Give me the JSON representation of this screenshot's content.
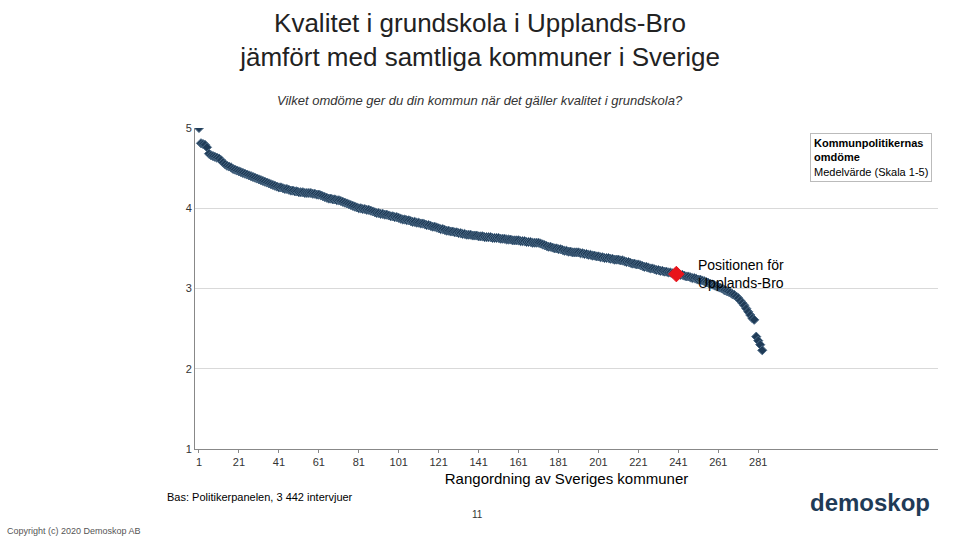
{
  "chart_data": {
    "type": "scatter",
    "title": [
      "Kvalitet i grundskola i Upplands-Bro",
      "jämfört med samtliga kommuner i Sverige"
    ],
    "subtitle": "Vilket omdöme ger du din kommun när det gäller kvalitet i grundskola?",
    "x_label": "Rangordning av Sveriges kommuner",
    "series": [
      {
        "name": "Kommunpolitikernas omdöme",
        "description": "Medelvärde (Skala 1-5)",
        "color": "#1f3b57",
        "marker": "diamond",
        "x": [
          1,
          2,
          3,
          4,
          5,
          6,
          7,
          8,
          9,
          10,
          11,
          12,
          13,
          14,
          15,
          16,
          17,
          18,
          19,
          20,
          21,
          22,
          23,
          24,
          25,
          26,
          27,
          28,
          29,
          30,
          31,
          32,
          33,
          34,
          35,
          36,
          37,
          38,
          39,
          40,
          41,
          42,
          43,
          44,
          45,
          46,
          47,
          48,
          49,
          50,
          51,
          52,
          53,
          54,
          55,
          56,
          57,
          58,
          59,
          60,
          61,
          62,
          63,
          64,
          65,
          66,
          67,
          68,
          69,
          70,
          71,
          72,
          73,
          74,
          75,
          76,
          77,
          78,
          79,
          80,
          81,
          82,
          83,
          84,
          85,
          86,
          87,
          88,
          89,
          90,
          91,
          92,
          93,
          94,
          95,
          96,
          97,
          98,
          99,
          100,
          101,
          102,
          103,
          104,
          105,
          106,
          107,
          108,
          109,
          110,
          111,
          112,
          113,
          114,
          115,
          116,
          117,
          118,
          119,
          120,
          121,
          122,
          123,
          124,
          125,
          126,
          127,
          128,
          129,
          130,
          131,
          132,
          133,
          134,
          135,
          136,
          137,
          138,
          139,
          140,
          141,
          142,
          143,
          144,
          145,
          146,
          147,
          148,
          149,
          150,
          151,
          152,
          153,
          154,
          155,
          156,
          157,
          158,
          159,
          160,
          161,
          162,
          163,
          164,
          165,
          166,
          167,
          168,
          169,
          170,
          171,
          172,
          173,
          174,
          175,
          176,
          177,
          178,
          179,
          180,
          181,
          182,
          183,
          184,
          185,
          186,
          187,
          188,
          189,
          190,
          191,
          192,
          193,
          194,
          195,
          196,
          197,
          198,
          199,
          200,
          201,
          202,
          203,
          204,
          205,
          206,
          207,
          208,
          209,
          210,
          211,
          212,
          213,
          214,
          215,
          216,
          217,
          218,
          219,
          220,
          221,
          222,
          223,
          224,
          225,
          226,
          227,
          228,
          229,
          230,
          231,
          232,
          233,
          234,
          235,
          236,
          237,
          238,
          239,
          240,
          241,
          242,
          243,
          244,
          245,
          246,
          247,
          248,
          249,
          250,
          251,
          252,
          253,
          254,
          255,
          256,
          257,
          258,
          259,
          260,
          261,
          262,
          263,
          264,
          265,
          266,
          267,
          268,
          269,
          270,
          271,
          272,
          273,
          274,
          275,
          276,
          277,
          278,
          279,
          280,
          281,
          282,
          283
        ],
        "values": [
          5.0,
          4.81,
          4.8,
          4.79,
          4.76,
          4.68,
          4.66,
          4.65,
          4.64,
          4.63,
          4.62,
          4.6,
          4.57,
          4.55,
          4.53,
          4.52,
          4.51,
          4.49,
          4.48,
          4.47,
          4.46,
          4.45,
          4.44,
          4.43,
          4.42,
          4.41,
          4.4,
          4.39,
          4.38,
          4.37,
          4.36,
          4.35,
          4.34,
          4.33,
          4.32,
          4.31,
          4.3,
          4.29,
          4.28,
          4.27,
          4.26,
          4.26,
          4.25,
          4.24,
          4.24,
          4.23,
          4.22,
          4.22,
          4.21,
          4.21,
          4.2,
          4.2,
          4.2,
          4.19,
          4.19,
          4.19,
          4.19,
          4.18,
          4.18,
          4.17,
          4.17,
          4.16,
          4.15,
          4.14,
          4.13,
          4.12,
          4.12,
          4.11,
          4.11,
          4.1,
          4.1,
          4.09,
          4.08,
          4.07,
          4.06,
          4.05,
          4.04,
          4.03,
          4.02,
          4.01,
          4.0,
          4.0,
          3.99,
          3.99,
          3.98,
          3.98,
          3.97,
          3.96,
          3.95,
          3.94,
          3.94,
          3.93,
          3.93,
          3.92,
          3.92,
          3.91,
          3.9,
          3.9,
          3.89,
          3.89,
          3.88,
          3.87,
          3.86,
          3.86,
          3.85,
          3.85,
          3.84,
          3.83,
          3.83,
          3.82,
          3.82,
          3.81,
          3.81,
          3.8,
          3.79,
          3.79,
          3.78,
          3.77,
          3.77,
          3.76,
          3.75,
          3.74,
          3.74,
          3.73,
          3.72,
          3.72,
          3.71,
          3.71,
          3.7,
          3.7,
          3.69,
          3.69,
          3.68,
          3.68,
          3.67,
          3.67,
          3.67,
          3.66,
          3.66,
          3.66,
          3.65,
          3.65,
          3.65,
          3.64,
          3.64,
          3.64,
          3.64,
          3.63,
          3.63,
          3.63,
          3.63,
          3.62,
          3.62,
          3.62,
          3.61,
          3.61,
          3.61,
          3.6,
          3.6,
          3.6,
          3.6,
          3.59,
          3.59,
          3.59,
          3.58,
          3.58,
          3.58,
          3.57,
          3.57,
          3.57,
          3.57,
          3.56,
          3.55,
          3.54,
          3.53,
          3.52,
          3.52,
          3.51,
          3.5,
          3.5,
          3.49,
          3.49,
          3.48,
          3.47,
          3.47,
          3.46,
          3.46,
          3.45,
          3.45,
          3.45,
          3.45,
          3.44,
          3.44,
          3.43,
          3.43,
          3.42,
          3.42,
          3.41,
          3.41,
          3.4,
          3.4,
          3.39,
          3.39,
          3.38,
          3.38,
          3.38,
          3.37,
          3.37,
          3.36,
          3.36,
          3.36,
          3.35,
          3.35,
          3.34,
          3.33,
          3.33,
          3.32,
          3.31,
          3.31,
          3.3,
          3.3,
          3.29,
          3.28,
          3.27,
          3.27,
          3.26,
          3.25,
          3.25,
          3.24,
          3.23,
          3.23,
          3.22,
          3.22,
          3.21,
          3.21,
          3.2,
          3.2,
          3.19,
          3.19,
          3.18,
          3.18,
          3.17,
          3.17,
          3.16,
          3.15,
          3.15,
          3.14,
          3.13,
          3.13,
          3.12,
          3.11,
          3.11,
          3.1,
          3.09,
          3.08,
          3.07,
          3.06,
          3.05,
          3.04,
          3.03,
          3.02,
          3.01,
          3.0,
          2.98,
          2.97,
          2.96,
          2.95,
          2.93,
          2.92,
          2.9,
          2.88,
          2.85,
          2.82,
          2.79,
          2.75,
          2.71,
          2.67,
          2.63,
          2.61,
          2.4,
          2.35,
          2.3,
          2.23
        ]
      }
    ],
    "highlight": {
      "label": "Positionen för Upplands-Bro",
      "x": 240,
      "value": 3.18,
      "color": "#e8141b",
      "marker": "diamond"
    },
    "xlim": [
      -1,
      371
    ],
    "xticks": [
      1,
      21,
      41,
      61,
      81,
      101,
      121,
      141,
      161,
      181,
      201,
      221,
      241,
      261,
      281
    ],
    "ylim": [
      1,
      5
    ],
    "yticks": [
      1,
      2,
      3,
      4,
      5
    ],
    "grid": true,
    "footer": {
      "source": "Bas: Politikerpanelen, 3 442 intervjuer",
      "page": "11",
      "copyright": "Copyright (c) 2020 Demoskop AB",
      "logo": "demoskop"
    }
  }
}
